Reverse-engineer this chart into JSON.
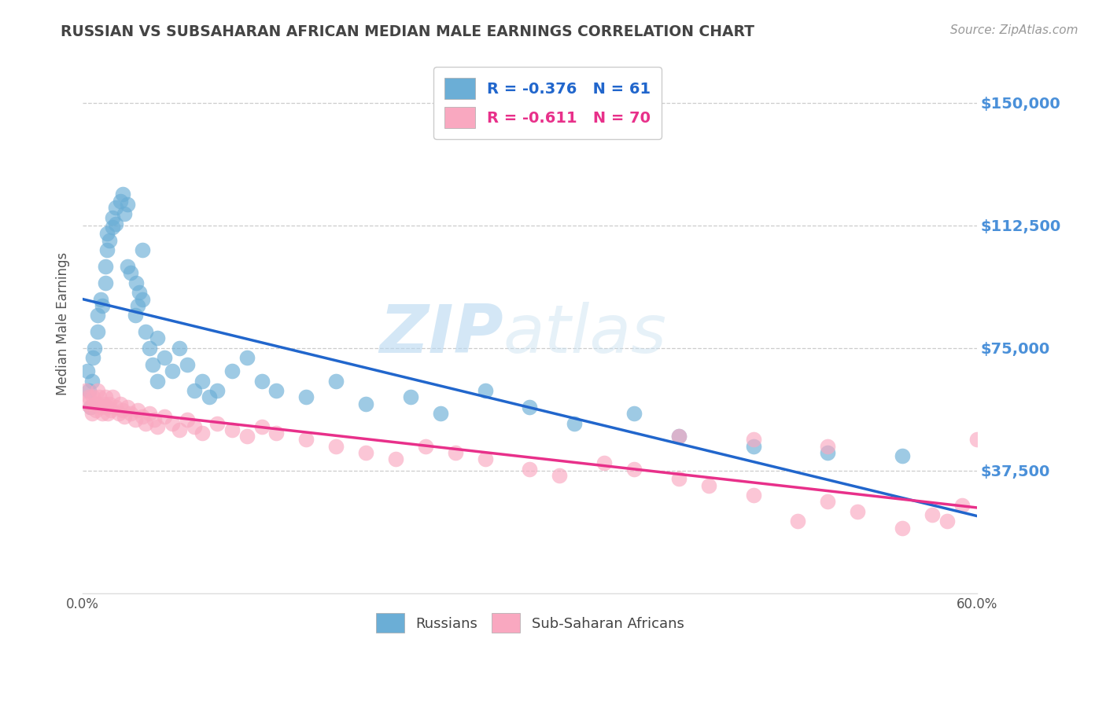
{
  "title": "RUSSIAN VS SUBSAHARAN AFRICAN MEDIAN MALE EARNINGS CORRELATION CHART",
  "source": "Source: ZipAtlas.com",
  "ylabel": "Median Male Earnings",
  "yticks": [
    0,
    37500,
    75000,
    112500,
    150000
  ],
  "ytick_labels": [
    "",
    "$37,500",
    "$75,000",
    "$112,500",
    "$150,000"
  ],
  "xlim": [
    0.0,
    0.6
  ],
  "ylim": [
    0,
    165000
  ],
  "legend_label_russian": "Russians",
  "legend_label_african": "Sub-Saharan Africans",
  "watermark_zip": "ZIP",
  "watermark_atlas": "atlas",
  "background_color": "#ffffff",
  "grid_color": "#cccccc",
  "russian_color": "#6baed6",
  "african_color": "#f9a8c0",
  "russian_line_color": "#2166cc",
  "african_line_color": "#e8308a",
  "title_color": "#444444",
  "source_color": "#999999",
  "ytick_color": "#4a90d9",
  "xtick_color": "#555555",
  "russian_R": -0.376,
  "russian_N": 61,
  "african_R": -0.611,
  "african_N": 70,
  "russians_x": [
    0.003,
    0.004,
    0.005,
    0.006,
    0.007,
    0.008,
    0.01,
    0.01,
    0.012,
    0.013,
    0.015,
    0.015,
    0.016,
    0.016,
    0.018,
    0.02,
    0.02,
    0.022,
    0.022,
    0.025,
    0.027,
    0.028,
    0.03,
    0.03,
    0.032,
    0.035,
    0.036,
    0.037,
    0.038,
    0.04,
    0.04,
    0.042,
    0.045,
    0.047,
    0.05,
    0.05,
    0.055,
    0.06,
    0.065,
    0.07,
    0.075,
    0.08,
    0.085,
    0.09,
    0.1,
    0.11,
    0.12,
    0.13,
    0.15,
    0.17,
    0.19,
    0.22,
    0.24,
    0.27,
    0.3,
    0.33,
    0.37,
    0.4,
    0.45,
    0.5,
    0.55
  ],
  "russians_y": [
    68000,
    62000,
    57000,
    65000,
    72000,
    75000,
    80000,
    85000,
    90000,
    88000,
    95000,
    100000,
    105000,
    110000,
    108000,
    112000,
    115000,
    118000,
    113000,
    120000,
    122000,
    116000,
    119000,
    100000,
    98000,
    85000,
    95000,
    88000,
    92000,
    90000,
    105000,
    80000,
    75000,
    70000,
    78000,
    65000,
    72000,
    68000,
    75000,
    70000,
    62000,
    65000,
    60000,
    62000,
    68000,
    72000,
    65000,
    62000,
    60000,
    65000,
    58000,
    60000,
    55000,
    62000,
    57000,
    52000,
    55000,
    48000,
    45000,
    43000,
    42000
  ],
  "africans_x": [
    0.002,
    0.003,
    0.004,
    0.005,
    0.006,
    0.007,
    0.008,
    0.009,
    0.01,
    0.01,
    0.011,
    0.012,
    0.013,
    0.014,
    0.015,
    0.016,
    0.017,
    0.018,
    0.019,
    0.02,
    0.022,
    0.024,
    0.025,
    0.027,
    0.028,
    0.03,
    0.032,
    0.035,
    0.037,
    0.04,
    0.042,
    0.045,
    0.048,
    0.05,
    0.055,
    0.06,
    0.065,
    0.07,
    0.075,
    0.08,
    0.09,
    0.1,
    0.11,
    0.12,
    0.13,
    0.15,
    0.17,
    0.19,
    0.21,
    0.23,
    0.25,
    0.27,
    0.3,
    0.32,
    0.35,
    0.37,
    0.4,
    0.42,
    0.45,
    0.48,
    0.5,
    0.52,
    0.55,
    0.57,
    0.58,
    0.59,
    0.6,
    0.4,
    0.45,
    0.5
  ],
  "africans_y": [
    62000,
    58000,
    60000,
    57000,
    55000,
    60000,
    58000,
    56000,
    62000,
    58000,
    60000,
    57000,
    55000,
    58000,
    60000,
    57000,
    55000,
    58000,
    56000,
    60000,
    57000,
    55000,
    58000,
    56000,
    54000,
    57000,
    55000,
    53000,
    56000,
    54000,
    52000,
    55000,
    53000,
    51000,
    54000,
    52000,
    50000,
    53000,
    51000,
    49000,
    52000,
    50000,
    48000,
    51000,
    49000,
    47000,
    45000,
    43000,
    41000,
    45000,
    43000,
    41000,
    38000,
    36000,
    40000,
    38000,
    35000,
    33000,
    30000,
    22000,
    28000,
    25000,
    20000,
    24000,
    22000,
    27000,
    47000,
    48000,
    47000,
    45000
  ]
}
